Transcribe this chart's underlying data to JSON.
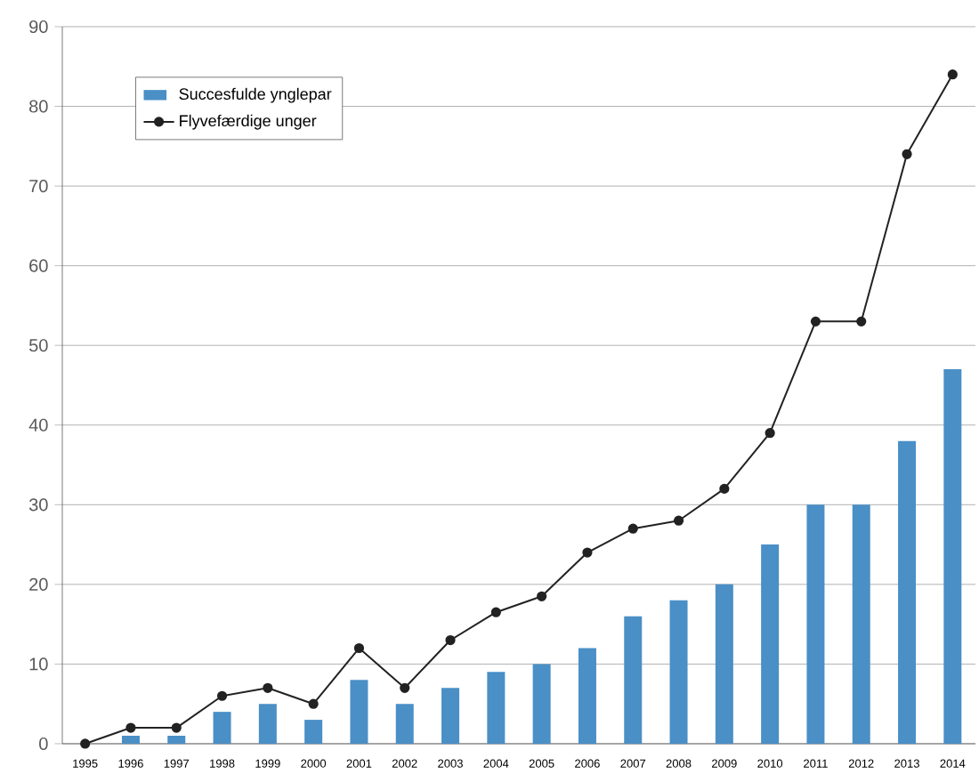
{
  "chart_data": {
    "type": "bar",
    "categories": [
      "1995",
      "1996",
      "1997",
      "1998",
      "1999",
      "2000",
      "2001",
      "2002",
      "2003",
      "2004",
      "2005",
      "2006",
      "2007",
      "2008",
      "2009",
      "2010",
      "2011",
      "2012",
      "2013",
      "2014"
    ],
    "series": [
      {
        "name": "Succesfulde ynglepar",
        "color": "#4a8fc6",
        "values": [
          0,
          1,
          1,
          4,
          5,
          3,
          8,
          5,
          7,
          9,
          10,
          12,
          16,
          18,
          20,
          25,
          30,
          30,
          38,
          47
        ]
      },
      {
        "name": "Flyvefærdige unger",
        "type": "line",
        "color": "#222222",
        "marker": "circle",
        "values": [
          0,
          2,
          2,
          6,
          7,
          5,
          12,
          7,
          13,
          16.5,
          18.5,
          24,
          27,
          28,
          32,
          39,
          53,
          53,
          74,
          84
        ]
      }
    ],
    "ylim": [
      0,
      90
    ],
    "yticks": [
      0,
      10,
      20,
      30,
      40,
      50,
      60,
      70,
      80,
      90
    ],
    "grid": "y",
    "legend": "top left"
  }
}
